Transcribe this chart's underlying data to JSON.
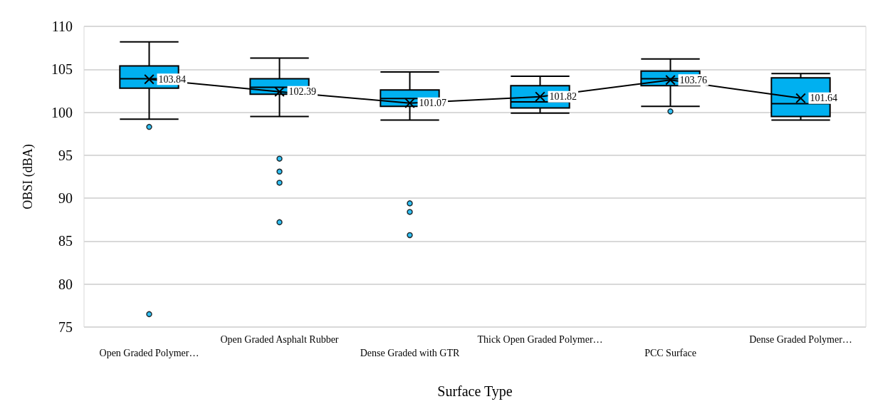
{
  "chart_data": {
    "type": "box",
    "xlabel": "Surface Type",
    "ylabel": "OBSI (dBA)",
    "categories": [
      "Open Graded Polymer…",
      "Open Graded Asphalt Rubber",
      "Dense Graded with GTR",
      "Thick Open Graded Polymer…",
      "PCC Surface",
      "Dense Graded Polymer…"
    ],
    "series": [
      {
        "color": "#00b0f0",
        "boxes": [
          {
            "low": 99.2,
            "q1": 102.8,
            "median": 103.9,
            "q3": 105.4,
            "high": 108.2,
            "outliers": [
              98.3,
              76.5
            ]
          },
          {
            "low": 99.5,
            "q1": 102.1,
            "median": 102.9,
            "q3": 103.9,
            "high": 106.3,
            "outliers": [
              94.6,
              93.1,
              91.8,
              87.2
            ]
          },
          {
            "low": 99.1,
            "q1": 100.7,
            "median": 101.6,
            "q3": 102.6,
            "high": 104.7,
            "outliers": [
              89.4,
              88.4,
              85.7
            ]
          },
          {
            "low": 99.9,
            "q1": 100.5,
            "median": 101.2,
            "q3": 103.1,
            "high": 104.2
          },
          {
            "low": 100.7,
            "q1": 103.1,
            "median": 103.9,
            "q3": 104.8,
            "high": 106.2,
            "outliers": [
              100.1
            ]
          },
          {
            "low": 99.1,
            "q1": 99.5,
            "median": 101.0,
            "q3": 104.0,
            "high": 104.5
          }
        ]
      },
      {
        "type": "line",
        "color": "#000000",
        "values": [
          103.84,
          102.39,
          101.07,
          101.82,
          103.76,
          101.64
        ]
      }
    ],
    "ylim": [
      75,
      110
    ],
    "yticks": [
      75,
      80,
      85,
      90,
      95,
      100,
      105,
      110
    ],
    "grid": "y",
    "marker": "cross",
    "data_labels": true
  }
}
